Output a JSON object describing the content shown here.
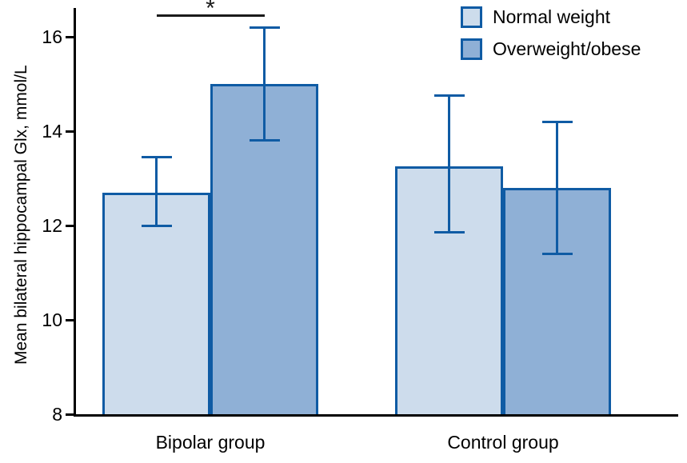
{
  "chart_data": {
    "type": "bar",
    "title": "",
    "ylabel": "Mean bilateral hippocampal Glx, mmol/L",
    "xlabel": "",
    "ylim": [
      8,
      16.6
    ],
    "yticks": [
      8,
      10,
      12,
      14,
      16
    ],
    "grid": false,
    "legend_position": "top-right",
    "accent_color": "#0f5ba4",
    "axis_color": "#000000",
    "categories": [
      "Bipolar group",
      "Control group"
    ],
    "series": [
      {
        "name": "Normal weight",
        "color": "#cddcec",
        "values": [
          12.7,
          13.25
        ],
        "error_high": [
          0.75,
          1.5
        ],
        "error_low": [
          0.7,
          1.4
        ]
      },
      {
        "name": "Overweight/obese",
        "color": "#8fb0d6",
        "values": [
          15.0,
          12.8
        ],
        "error_high": [
          1.2,
          1.4
        ],
        "error_low": [
          1.2,
          1.4
        ]
      }
    ],
    "annotations": [
      {
        "type": "significance-bracket",
        "label": "*",
        "category": "Bipolar group",
        "between": [
          "Normal weight",
          "Overweight/obese"
        ]
      }
    ]
  }
}
